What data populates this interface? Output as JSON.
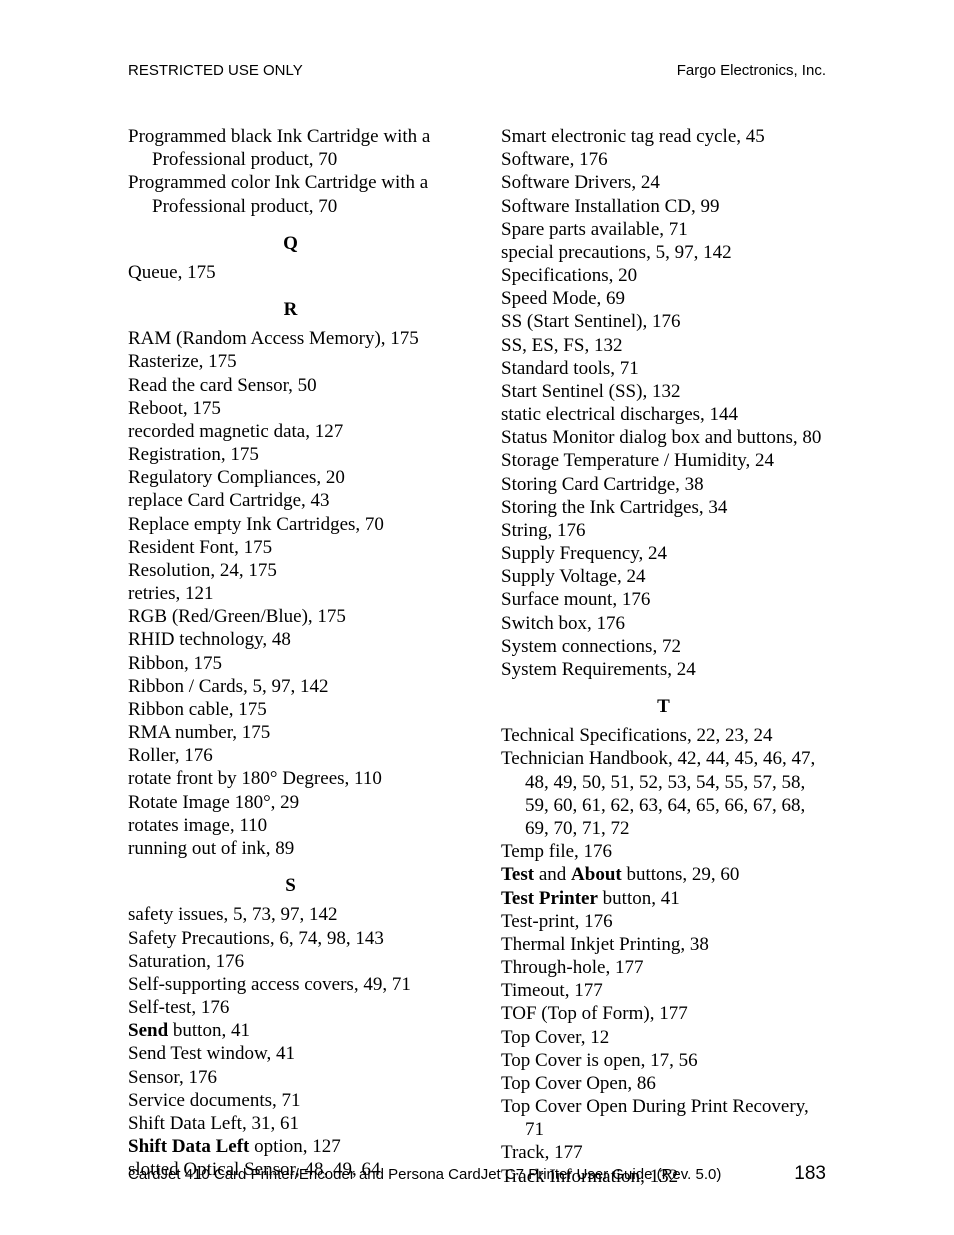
{
  "header": {
    "left": "RESTRICTED USE ONLY",
    "right": "Fargo Electronics, Inc."
  },
  "footer": {
    "text": "CardJet 410 Card Printer/Encoder and Persona CardJet C7 Printer User Guide (Rev. 5.0)",
    "page": "183"
  },
  "sections": {
    "Q": "Q",
    "R": "R",
    "S": "S",
    "T": "T"
  },
  "entries": {
    "p1": "Programmed black Ink Cartridge with a Professional product, 70",
    "p2": "Programmed color Ink Cartridge with a Professional product, 70",
    "q1": "Queue, 175",
    "r1": "RAM (Random Access Memory), 175",
    "r2": "Rasterize, 175",
    "r3": "Read the card Sensor, 50",
    "r4": "Reboot, 175",
    "r5": "recorded magnetic data, 127",
    "r6": "Registration, 175",
    "r7": "Regulatory Compliances, 20",
    "r8": "replace Card Cartridge, 43",
    "r9": "Replace empty Ink Cartridges, 70",
    "r10": "Resident Font, 175",
    "r11": "Resolution, 24, 175",
    "r12": "retries, 121",
    "r13": "RGB (Red/Green/Blue), 175",
    "r14": "RHID technology, 48",
    "r15": "Ribbon, 175",
    "r16": "Ribbon / Cards, 5, 97, 142",
    "r17": "Ribbon cable, 175",
    "r18": "RMA number, 175",
    "r19": "Roller, 176",
    "r20": "rotate front by 180° Degrees, 110",
    "r21": "Rotate Image 180°, 29",
    "r22": "rotates image, 110",
    "r23": "running out of ink, 89",
    "s1": "safety issues, 5, 73, 97, 142",
    "s2": "Safety Precautions, 6, 74, 98, 143",
    "s3": "Saturation, 176",
    "s4": "Self-supporting access covers, 49, 71",
    "s5": "Self-test, 176",
    "s6_bold": "Send",
    "s6_rest": " button, 41",
    "s7": "Send Test window, 41",
    "s8": "Sensor, 176",
    "s9": "Service documents, 71",
    "s10": "Shift Data Left, 31, 61",
    "s11_bold": "Shift Data Left",
    "s11_rest": " option, 127",
    "s12": "slotted Optical Sensor, 48, 49, 64",
    "s13": "Smart electronic tag read cycle, 45",
    "s14": "Software, 176",
    "s15": "Software Drivers, 24",
    "s16": "Software Installation CD, 99",
    "s17": "Spare parts available, 71",
    "s18": "special precautions, 5, 97, 142",
    "s19": "Specifications, 20",
    "s20": "Speed Mode, 69",
    "s21": "SS (Start Sentinel), 176",
    "s22": "SS, ES, FS, 132",
    "s23": "Standard tools, 71",
    "s24": "Start Sentinel (SS), 132",
    "s25": "static electrical discharges, 144",
    "s26": "Status Monitor dialog box and buttons, 80",
    "s27": "Storage Temperature / Humidity, 24",
    "s28": "Storing Card Cartridge, 38",
    "s29": "Storing the Ink Cartridges, 34",
    "s30": "String, 176",
    "s31": "Supply Frequency, 24",
    "s32": "Supply Voltage, 24",
    "s33": "Surface mount, 176",
    "s34": "Switch box, 176",
    "s35": "System connections, 72",
    "s36": "System Requirements, 24",
    "t1": "Technical Specifications, 22, 23, 24",
    "t2": "Technician Handbook, 42, 44, 45, 46, 47, 48, 49, 50, 51, 52, 53, 54, 55, 57, 58, 59, 60, 61, 62, 63, 64, 65, 66, 67, 68, 69, 70, 71, 72",
    "t3": "Temp file, 176",
    "t4_b1": "Test",
    "t4_m1": " and ",
    "t4_b2": "About",
    "t4_rest": " buttons, 29, 60",
    "t5_bold": "Test Printer",
    "t5_rest": " button, 41",
    "t6": "Test-print, 176",
    "t7": "Thermal Inkjet Printing, 38",
    "t8": "Through-hole, 177",
    "t9": "Timeout, 177",
    "t10": "TOF (Top of Form), 177",
    "t11": "Top Cover, 12",
    "t12": "Top Cover is open, 17, 56",
    "t13": "Top Cover Open, 86",
    "t14": "Top Cover Open During Print Recovery, 71",
    "t15": "Track, 177",
    "t16": "Track Information, 132"
  }
}
